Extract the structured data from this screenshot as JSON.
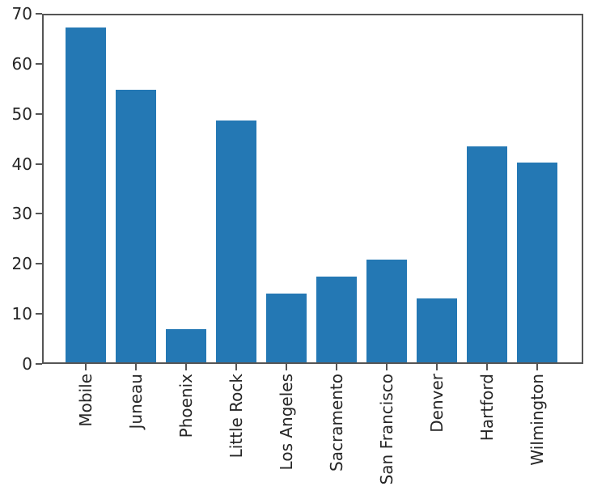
{
  "chart_data": {
    "type": "bar",
    "title": "",
    "xlabel": "",
    "ylabel": "",
    "categories": [
      "Mobile",
      "Juneau",
      "Phoenix",
      "Little Rock",
      "Los Angeles",
      "Sacramento",
      "San Francisco",
      "Denver",
      "Hartford",
      "Wilmington"
    ],
    "values": [
      66.9,
      54.5,
      6.6,
      48.4,
      13.7,
      17.2,
      20.5,
      12.8,
      43.2,
      39.9
    ],
    "ylim": [
      0,
      70
    ],
    "yticks": [
      0,
      10,
      20,
      30,
      40,
      50,
      60,
      70
    ],
    "x_tick_rotation": 90,
    "grid": false,
    "legend": null,
    "colors": {
      "bar": "#2478b4",
      "spine": "#555555",
      "tick_label": "#262626",
      "background": "#ffffff"
    }
  }
}
